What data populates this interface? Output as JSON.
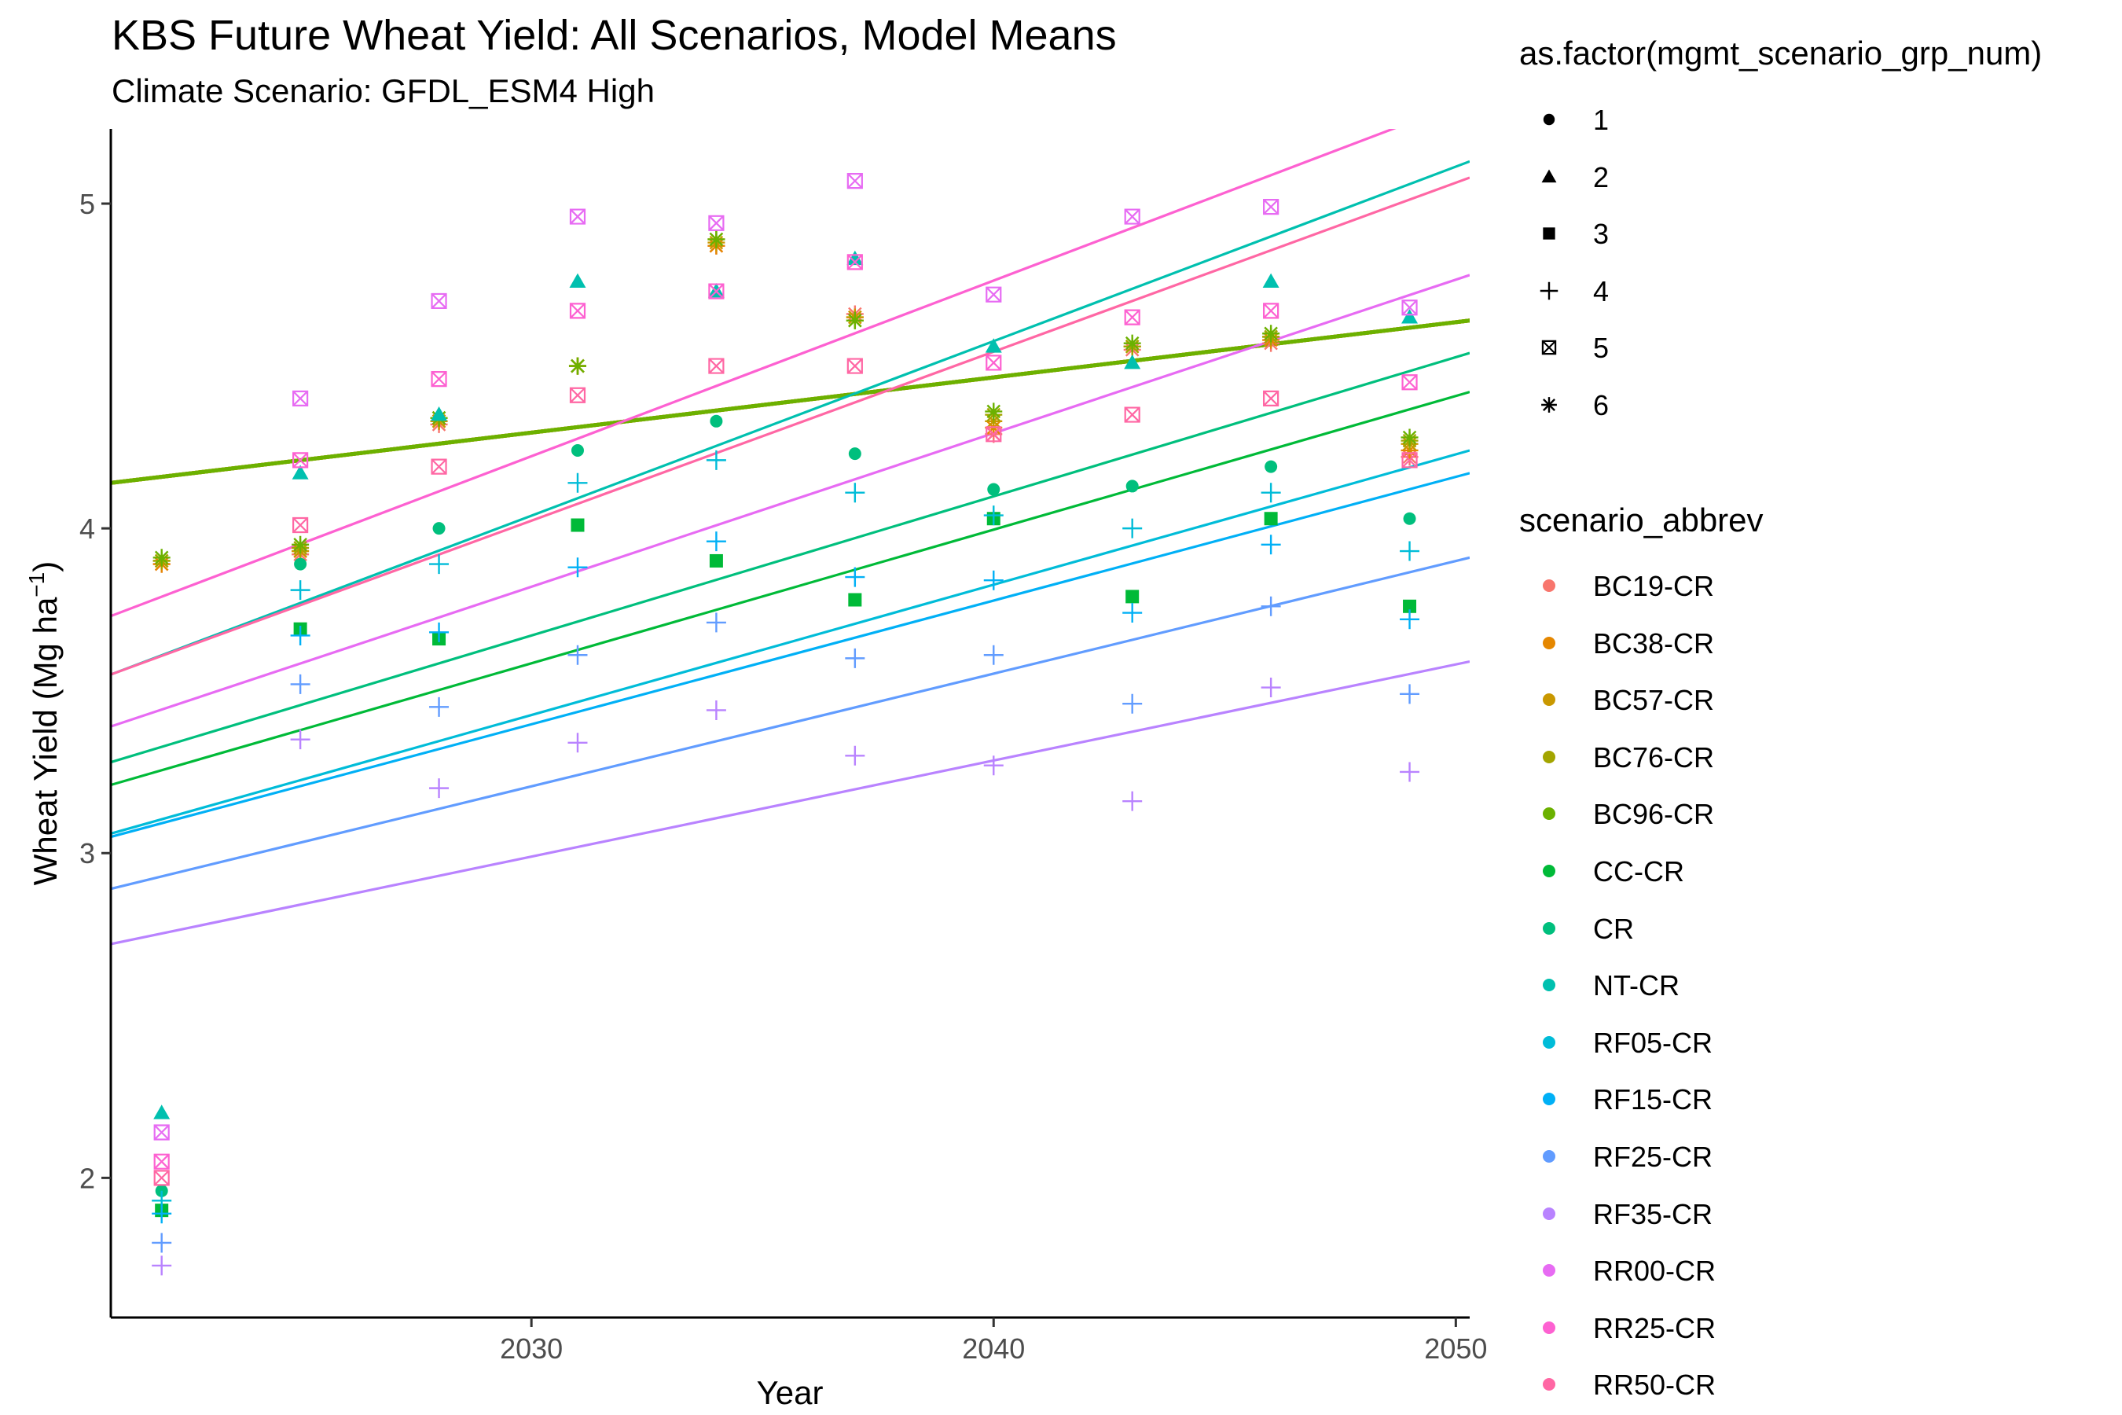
{
  "chart_data": {
    "type": "scatter",
    "title": "KBS  Future Wheat Yield: All Scenarios, Model Means",
    "subtitle": "Climate Scenario: GFDL_ESM4 High",
    "xlabel": "Year",
    "ylabel": "Wheat Yield (Mg ha",
    "ylabel_sup": "−1",
    "ylabel_close": ")",
    "xlim": [
      2020.9,
      2050.3
    ],
    "ylim": [
      1.57,
      5.23
    ],
    "x_ticks": [
      2030,
      2040,
      2050
    ],
    "y_ticks": [
      2,
      3,
      4,
      5
    ],
    "grid": false,
    "legend_placement": "right",
    "shape_legend": {
      "title": "as.factor(mgmt_scenario_grp_num)",
      "entries": [
        {
          "label": "1",
          "shape": "circle"
        },
        {
          "label": "2",
          "shape": "triangle"
        },
        {
          "label": "3",
          "shape": "square"
        },
        {
          "label": "4",
          "shape": "plus"
        },
        {
          "label": "5",
          "shape": "boxx"
        },
        {
          "label": "6",
          "shape": "asterisk"
        }
      ]
    },
    "color_legend": {
      "title": "scenario_abbrev",
      "entries": [
        {
          "label": "BC19-CR",
          "color": "#F8766D"
        },
        {
          "label": "BC38-CR",
          "color": "#E58700"
        },
        {
          "label": "BC57-CR",
          "color": "#C99800"
        },
        {
          "label": "BC76-CR",
          "color": "#A3A500"
        },
        {
          "label": "BC96-CR",
          "color": "#6BB100"
        },
        {
          "label": "CC-CR",
          "color": "#00BA38"
        },
        {
          "label": "CR",
          "color": "#00BF7D"
        },
        {
          "label": "NT-CR",
          "color": "#00C0AF"
        },
        {
          "label": "RF05-CR",
          "color": "#00BCD8"
        },
        {
          "label": "RF15-CR",
          "color": "#00B0F6"
        },
        {
          "label": "RF25-CR",
          "color": "#619CFF"
        },
        {
          "label": "RF35-CR",
          "color": "#B983FF"
        },
        {
          "label": "RR00-CR",
          "color": "#E76BF3"
        },
        {
          "label": "RR25-CR",
          "color": "#FD61D1"
        },
        {
          "label": "RR50-CR",
          "color": "#FF67A4"
        }
      ]
    },
    "series": [
      {
        "name": "BC19-CR",
        "group": "6",
        "color": "#F8766D",
        "trend": [
          4.14,
          4.64
        ],
        "x": [
          2022,
          2025,
          2028,
          2031,
          2034,
          2037,
          2040,
          2043,
          2046,
          2049
        ],
        "y": [
          3.89,
          3.92,
          4.32,
          4.5,
          4.87,
          4.66,
          4.29,
          4.55,
          4.57,
          4.22
        ]
      },
      {
        "name": "BC38-CR",
        "group": "6",
        "color": "#E58700",
        "trend": [
          4.14,
          4.64
        ],
        "x": [
          2022,
          2025,
          2028,
          2031,
          2034,
          2037,
          2040,
          2043,
          2046,
          2049
        ],
        "y": [
          3.89,
          3.93,
          4.33,
          4.5,
          4.87,
          4.65,
          4.31,
          4.56,
          4.58,
          4.24
        ]
      },
      {
        "name": "BC57-CR",
        "group": "6",
        "color": "#C99800",
        "trend": [
          4.14,
          4.64
        ],
        "x": [
          2022,
          2025,
          2028,
          2031,
          2034,
          2037,
          2040,
          2043,
          2046,
          2049
        ],
        "y": [
          3.9,
          3.93,
          4.33,
          4.5,
          4.88,
          4.65,
          4.33,
          4.56,
          4.59,
          4.26
        ]
      },
      {
        "name": "BC76-CR",
        "group": "6",
        "color": "#A3A500",
        "trend": [
          4.14,
          4.64
        ],
        "x": [
          2022,
          2025,
          2028,
          2031,
          2034,
          2037,
          2040,
          2043,
          2046,
          2049
        ],
        "y": [
          3.9,
          3.94,
          4.34,
          4.5,
          4.89,
          4.64,
          4.35,
          4.56,
          4.59,
          4.27
        ]
      },
      {
        "name": "BC96-CR",
        "group": "6",
        "color": "#6BB100",
        "trend": [
          4.14,
          4.64
        ],
        "x": [
          2022,
          2025,
          2028,
          2031,
          2034,
          2037,
          2040,
          2043,
          2046,
          2049
        ],
        "y": [
          3.91,
          3.95,
          4.34,
          4.5,
          4.89,
          4.64,
          4.36,
          4.57,
          4.6,
          4.28
        ]
      },
      {
        "name": "CC-CR",
        "group": "3",
        "color": "#00BA38",
        "trend": [
          3.21,
          4.42
        ],
        "x": [
          2022,
          2025,
          2028,
          2031,
          2034,
          2037,
          2040,
          2043,
          2046,
          2049
        ],
        "y": [
          1.9,
          3.69,
          3.66,
          4.01,
          3.9,
          3.78,
          4.03,
          3.79,
          4.03,
          3.76
        ]
      },
      {
        "name": "CR",
        "group": "1",
        "color": "#00BF7D",
        "trend": [
          3.28,
          4.54
        ],
        "x": [
          2022,
          2025,
          2028,
          2031,
          2034,
          2037,
          2040,
          2043,
          2046,
          2049
        ],
        "y": [
          1.96,
          3.89,
          4.0,
          4.24,
          4.33,
          4.23,
          4.12,
          4.13,
          4.19,
          4.03
        ]
      },
      {
        "name": "NT-CR",
        "group": "2",
        "color": "#00C0AF",
        "trend": [
          3.55,
          5.13
        ],
        "x": [
          2022,
          2025,
          2028,
          2031,
          2034,
          2037,
          2040,
          2043,
          2046,
          2049
        ],
        "y": [
          2.2,
          4.17,
          4.35,
          4.76,
          4.73,
          4.83,
          4.56,
          4.51,
          4.76,
          4.65
        ]
      },
      {
        "name": "RF05-CR",
        "group": "4",
        "color": "#00BCD8",
        "trend": [
          3.06,
          4.24
        ],
        "x": [
          2022,
          2025,
          2028,
          2031,
          2034,
          2037,
          2040,
          2043,
          2046,
          2049
        ],
        "y": [
          1.93,
          3.81,
          3.89,
          4.14,
          4.21,
          4.11,
          4.04,
          4.0,
          4.11,
          3.93
        ]
      },
      {
        "name": "RF15-CR",
        "group": "4",
        "color": "#00B0F6",
        "trend": [
          3.05,
          4.17
        ],
        "x": [
          2022,
          2025,
          2028,
          2031,
          2034,
          2037,
          2040,
          2043,
          2046,
          2049
        ],
        "y": [
          1.89,
          3.67,
          3.68,
          3.88,
          3.96,
          3.85,
          3.84,
          3.74,
          3.95,
          3.72
        ]
      },
      {
        "name": "RF25-CR",
        "group": "4",
        "color": "#619CFF",
        "trend": [
          2.89,
          3.91
        ],
        "x": [
          2022,
          2025,
          2028,
          2031,
          2034,
          2037,
          2040,
          2043,
          2046,
          2049
        ],
        "y": [
          1.8,
          3.52,
          3.45,
          3.61,
          3.71,
          3.6,
          3.61,
          3.46,
          3.76,
          3.49
        ]
      },
      {
        "name": "RF35-CR",
        "group": "4",
        "color": "#B983FF",
        "trend": [
          2.72,
          3.59
        ],
        "x": [
          2022,
          2025,
          2028,
          2031,
          2034,
          2037,
          2040,
          2043,
          2046,
          2049
        ],
        "y": [
          1.73,
          3.35,
          3.2,
          3.34,
          3.44,
          3.3,
          3.27,
          3.16,
          3.51,
          3.25
        ]
      },
      {
        "name": "RR00-CR",
        "group": "5",
        "color": "#E76BF3",
        "trend": [
          3.39,
          4.78
        ],
        "x": [
          2022,
          2025,
          2028,
          2031,
          2034,
          2037,
          2040,
          2043,
          2046,
          2049
        ],
        "y": [
          2.14,
          4.4,
          4.7,
          4.96,
          4.94,
          5.07,
          4.72,
          4.96,
          4.99,
          4.68
        ]
      },
      {
        "name": "RR25-CR",
        "group": "5",
        "color": "#FD61D1",
        "trend": [
          3.73,
          5.32
        ],
        "x": [
          2022,
          2025,
          2028,
          2031,
          2034,
          2037,
          2040,
          2043,
          2046,
          2049
        ],
        "y": [
          2.05,
          4.21,
          4.46,
          4.67,
          4.73,
          4.82,
          4.51,
          4.65,
          4.67,
          4.45
        ]
      },
      {
        "name": "RR50-CR",
        "group": "5",
        "color": "#FF67A4",
        "trend": [
          3.55,
          5.08
        ],
        "x": [
          2022,
          2025,
          2028,
          2031,
          2034,
          2037,
          2040,
          2043,
          2046,
          2049
        ],
        "y": [
          2.0,
          4.01,
          4.19,
          4.41,
          4.5,
          4.5,
          4.29,
          4.35,
          4.4,
          4.21
        ]
      }
    ]
  }
}
